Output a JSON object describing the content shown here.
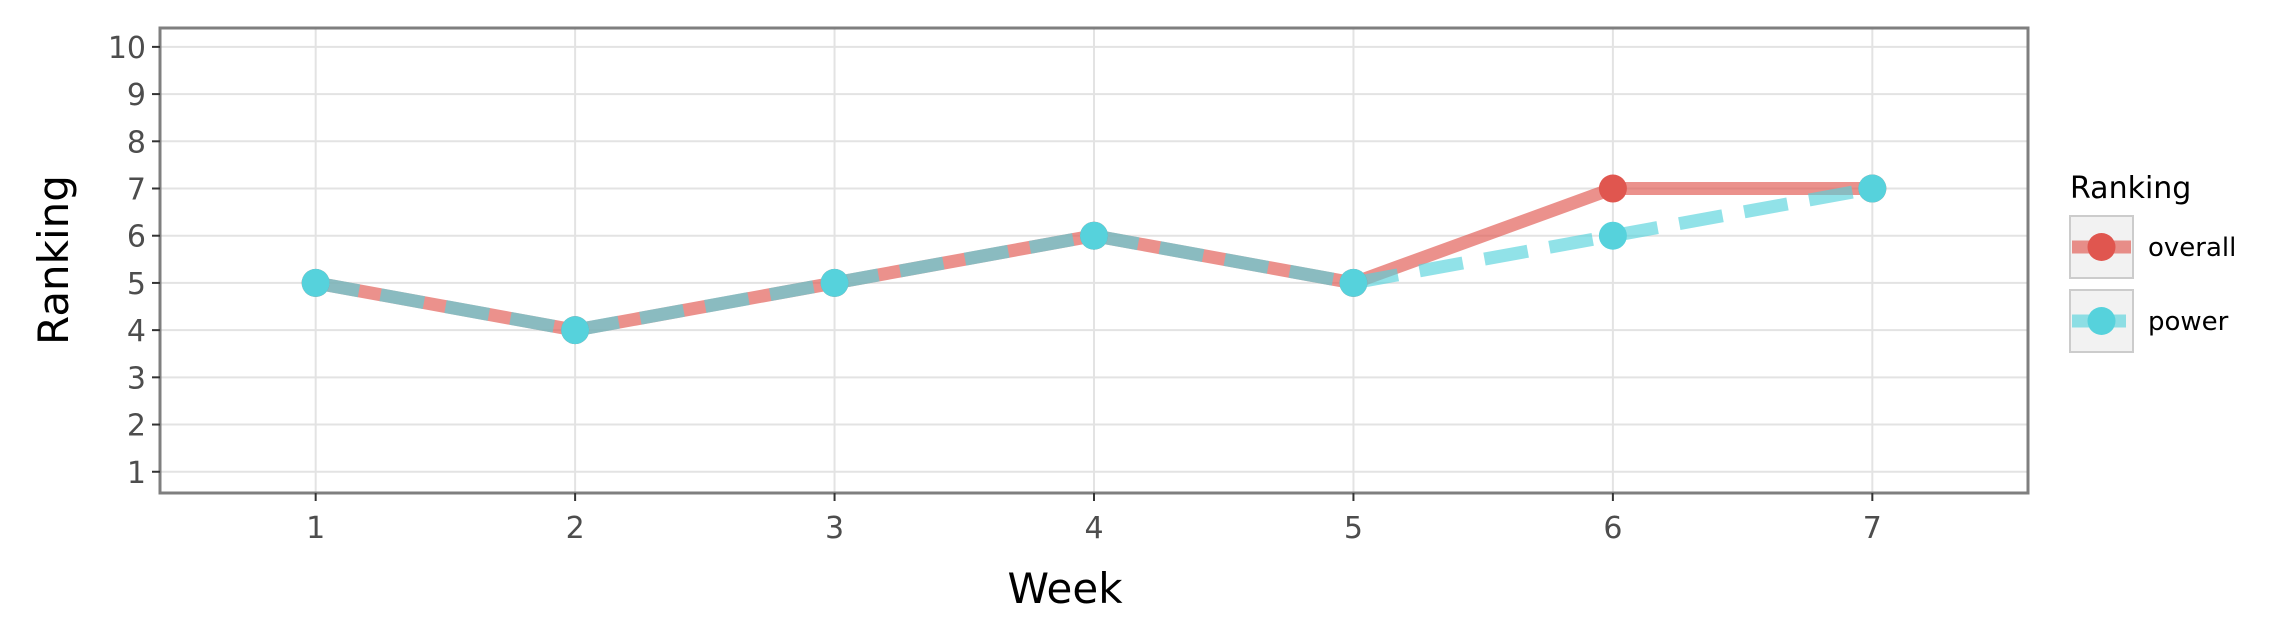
{
  "chart_data": {
    "type": "line",
    "title": "",
    "xlabel": "Week",
    "ylabel": "Ranking",
    "x": [
      1,
      2,
      3,
      4,
      5,
      6,
      7
    ],
    "xlim": [
      0.4,
      7.6
    ],
    "ylim": [
      10.4,
      0.55
    ],
    "y_reversed": true,
    "xticks": [
      1,
      2,
      3,
      4,
      5,
      6,
      7
    ],
    "yticks": [
      1,
      2,
      3,
      4,
      5,
      6,
      7,
      8,
      9,
      10
    ],
    "grid": true,
    "legend": {
      "title": "Ranking",
      "position": "right"
    },
    "series": [
      {
        "name": "overall",
        "values": [
          5,
          4,
          5,
          6,
          5,
          7,
          7
        ],
        "color": "#E0564F",
        "line_style": "solid"
      },
      {
        "name": "power",
        "values": [
          5,
          4,
          5,
          6,
          5,
          6,
          7
        ],
        "color": "#56D2DC",
        "line_style": "dashed"
      }
    ]
  }
}
